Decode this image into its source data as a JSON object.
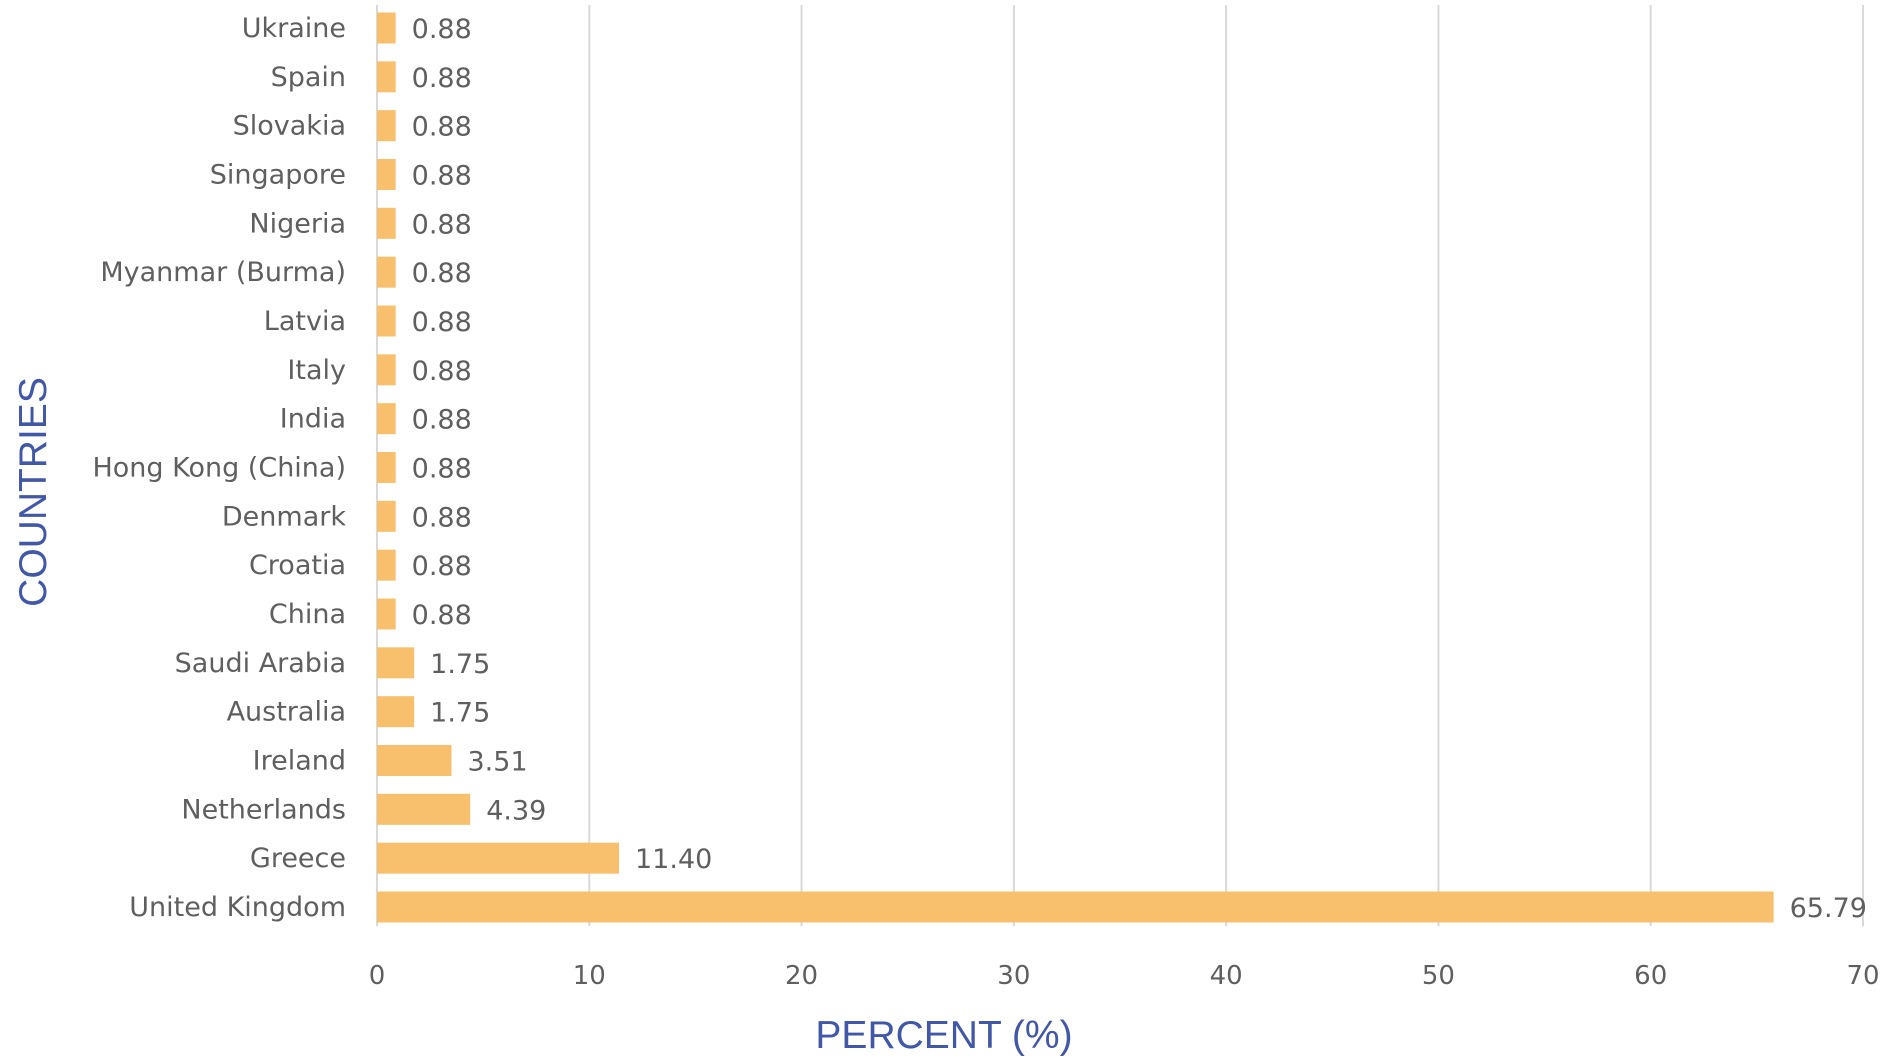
{
  "chart_data": {
    "type": "bar",
    "orientation": "horizontal",
    "categories": [
      "Ukraine",
      "Spain",
      "Slovakia",
      "Singapore",
      "Nigeria",
      "Myanmar (Burma)",
      "Latvia",
      "Italy",
      "India",
      "Hong Kong (China)",
      "Denmark",
      "Croatia",
      "China",
      "Saudi Arabia",
      "Australia",
      "Ireland",
      "Netherlands",
      "Greece",
      "United Kingdom"
    ],
    "values": [
      0.88,
      0.88,
      0.88,
      0.88,
      0.88,
      0.88,
      0.88,
      0.88,
      0.88,
      0.88,
      0.88,
      0.88,
      0.88,
      1.75,
      1.75,
      3.51,
      4.39,
      11.4,
      65.79
    ],
    "value_labels": [
      "0.88",
      "0.88",
      "0.88",
      "0.88",
      "0.88",
      "0.88",
      "0.88",
      "0.88",
      "0.88",
      "0.88",
      "0.88",
      "0.88",
      "0.88",
      "1.75",
      "1.75",
      "3.51",
      "4.39",
      "11.40",
      "65.79"
    ],
    "xlabel": "PERCENT (%)",
    "ylabel": "COUNTRIES",
    "xlim": [
      0,
      70
    ],
    "xticks": [
      0,
      10,
      20,
      30,
      40,
      50,
      60,
      70
    ],
    "grid": "vertical",
    "legend": "none",
    "colors": {
      "bar": "#F8C06C",
      "grid": "#d9d9d9",
      "axis_title": "#4157a8",
      "text": "#5f5f5f"
    }
  }
}
